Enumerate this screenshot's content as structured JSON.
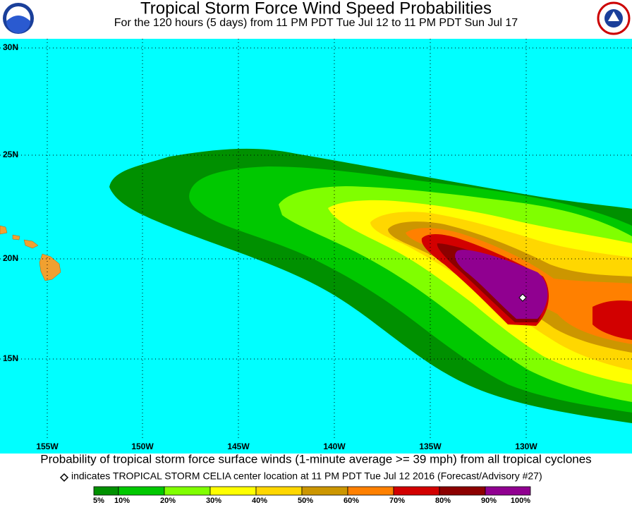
{
  "header": {
    "title": "Tropical Storm Force Wind Speed Probabilities",
    "subtitle": "For the 120 hours (5 days) from 11 PM PDT Tue Jul 12 to 11 PM PDT Sun Jul 17"
  },
  "map": {
    "lat_labels": [
      "30N",
      "25N",
      "20N",
      "15N"
    ],
    "lon_labels": [
      "155W",
      "150W",
      "145W",
      "140W",
      "135W",
      "130W"
    ]
  },
  "caption": "Probability of tropical storm force surface winds (1-minute average >= 39 mph) from all tropical cyclones",
  "note": "indicates TROPICAL STORM CELIA center location at 11 PM PDT Tue Jul 12 2016 (Forecast/Advisory #27)",
  "legend": {
    "labels": [
      "5%",
      "10%",
      "20%",
      "30%",
      "40%",
      "50%",
      "60%",
      "70%",
      "80%",
      "90%",
      "100%"
    ],
    "colors": [
      "#009000",
      "#00c800",
      "#80ff00",
      "#ffff00",
      "#ffd700",
      "#cc9600",
      "#ff8000",
      "#d20000",
      "#8c0000",
      "#900090"
    ]
  }
}
